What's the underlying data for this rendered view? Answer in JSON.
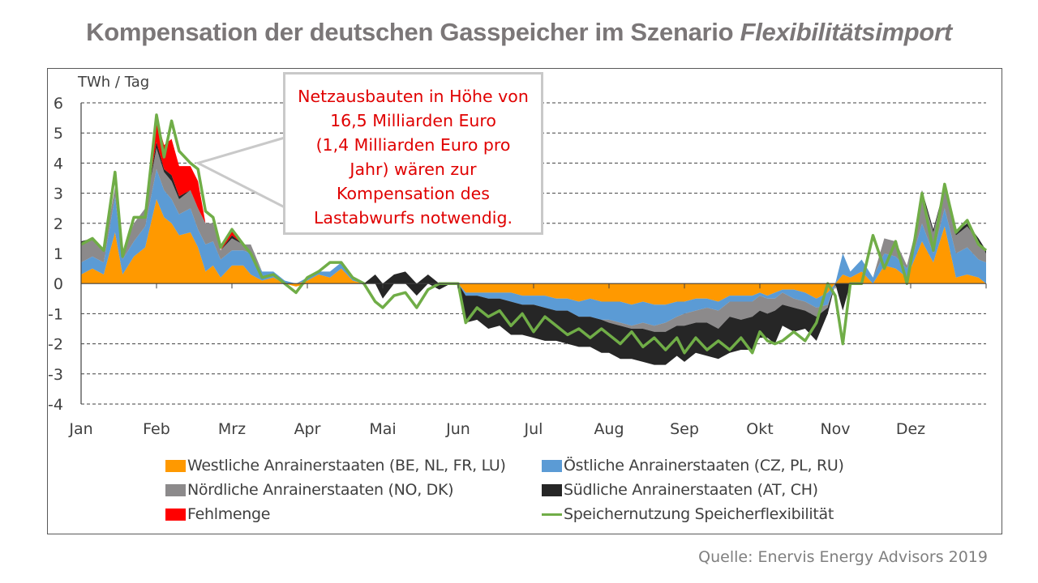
{
  "title": {
    "main": "Kompensation der deutschen Gasspeicher im Szenario ",
    "italic": "Flexibilitätsimport"
  },
  "source": "Quelle: Enervis Energy Advisors 2019",
  "callout": {
    "lines": [
      "Netzausbauten in Höhe von",
      "16,5 Milliarden Euro",
      "(1,4 Milliarden Euro pro",
      "Jahr) wären zur",
      "Kompensation des",
      "Lastabwurfs notwendig."
    ],
    "text_color": "#e00000",
    "border_color": "#c9c9c9",
    "points_to": {
      "month_position": 1.55,
      "value": 4.0
    }
  },
  "legend": [
    {
      "key": "west",
      "label": "Westliche Anrainerstaaten (BE, NL, FR, LU)",
      "color": "#ff9900",
      "kind": "area"
    },
    {
      "key": "east",
      "label": "Östliche Anrainerstaaten (CZ, PL, RU)",
      "color": "#5b9bd5",
      "kind": "area"
    },
    {
      "key": "north",
      "label": "Nördliche Anrainerstaaten (NO, DK)",
      "color": "#8c8a8b",
      "kind": "area"
    },
    {
      "key": "south",
      "label": "Südliche Anrainerstaaten (AT, CH)",
      "color": "#262626",
      "kind": "area"
    },
    {
      "key": "deficit",
      "label": "Fehlmenge",
      "color": "#ff0000",
      "kind": "area"
    },
    {
      "key": "usage",
      "label": "Speichernutzung Speicherflexibilität",
      "color": "#70ad47",
      "kind": "line"
    }
  ],
  "chart_data": {
    "type": "area",
    "stacked": true,
    "title": "Kompensation der deutschen Gasspeicher im Szenario Flexibilitätsimport",
    "ylabel": "TWh / Tag",
    "xlabel": "",
    "ylim": [
      -4,
      6
    ],
    "yticks": [
      "6",
      "5",
      "4",
      "3",
      "2",
      "1",
      "0",
      "-1",
      "-2",
      "-3",
      "-4"
    ],
    "ytick_values": [
      6,
      5,
      4,
      3,
      2,
      1,
      0,
      -1,
      -2,
      -3,
      -4
    ],
    "grid": "horizontal dashed",
    "categories": [
      "Jan",
      "Feb",
      "Mrz",
      "Apr",
      "Mai",
      "Jun",
      "Jul",
      "Aug",
      "Sep",
      "Okt",
      "Nov",
      "Dez"
    ],
    "x_unit": "month position (0 = start Jan, 12 = end Dez)",
    "x": [
      0.0,
      0.15,
      0.3,
      0.45,
      0.55,
      0.7,
      0.85,
      1.0,
      1.1,
      1.2,
      1.3,
      1.45,
      1.55,
      1.65,
      1.75,
      1.85,
      2.0,
      2.15,
      2.25,
      2.4,
      2.55,
      2.7,
      2.85,
      3.0,
      3.15,
      3.3,
      3.45,
      3.6,
      3.75,
      3.9,
      4.0,
      4.15,
      4.3,
      4.45,
      4.6,
      4.75,
      4.9,
      5.0,
      5.1,
      5.25,
      5.4,
      5.55,
      5.7,
      5.85,
      6.0,
      6.15,
      6.3,
      6.45,
      6.6,
      6.75,
      6.9,
      7.0,
      7.15,
      7.3,
      7.45,
      7.6,
      7.75,
      7.9,
      8.0,
      8.15,
      8.3,
      8.45,
      8.6,
      8.75,
      8.9,
      9.0,
      9.1,
      9.2,
      9.3,
      9.45,
      9.6,
      9.75,
      9.9,
      10.0,
      10.1,
      10.2,
      10.35,
      10.5,
      10.65,
      10.8,
      10.95,
      11.05,
      11.15,
      11.3,
      11.45,
      11.6,
      11.75,
      11.9,
      12.0
    ],
    "series": [
      {
        "name": "Westliche Anrainerstaaten (BE, NL, FR, LU)",
        "key": "west",
        "values": [
          0.3,
          0.5,
          0.3,
          1.7,
          0.3,
          0.9,
          1.2,
          2.8,
          2.2,
          2.0,
          1.6,
          1.7,
          1.2,
          0.4,
          0.6,
          0.2,
          0.6,
          0.6,
          0.3,
          0.1,
          0.2,
          0.0,
          -0.1,
          0.1,
          0.3,
          0.2,
          0.5,
          0.1,
          0.0,
          0.0,
          0.0,
          0.0,
          0.0,
          0.0,
          0.0,
          0.0,
          0.0,
          0.0,
          -0.3,
          -0.3,
          -0.3,
          -0.3,
          -0.3,
          -0.4,
          -0.4,
          -0.4,
          -0.5,
          -0.5,
          -0.6,
          -0.5,
          -0.6,
          -0.6,
          -0.6,
          -0.7,
          -0.6,
          -0.7,
          -0.7,
          -0.6,
          -0.6,
          -0.5,
          -0.5,
          -0.6,
          -0.4,
          -0.4,
          -0.4,
          -0.3,
          -0.4,
          -0.3,
          -0.2,
          -0.2,
          -0.3,
          -0.5,
          -0.3,
          0.0,
          0.3,
          0.2,
          0.4,
          0.0,
          0.6,
          0.5,
          0.2,
          0.8,
          1.4,
          0.7,
          1.9,
          0.2,
          0.3,
          0.2,
          0.0
        ]
      },
      {
        "name": "Östliche Anrainerstaaten (CZ, PL, RU)",
        "key": "east",
        "values": [
          0.4,
          0.4,
          0.4,
          1.2,
          0.5,
          0.5,
          0.7,
          1.0,
          0.9,
          0.8,
          0.7,
          0.8,
          0.6,
          0.9,
          0.8,
          0.6,
          0.5,
          0.5,
          0.7,
          0.3,
          0.2,
          0.1,
          0.0,
          0.1,
          0.1,
          0.2,
          0.2,
          0.1,
          0.0,
          0.0,
          0.0,
          0.0,
          0.0,
          0.0,
          0.0,
          0.0,
          0.0,
          0.0,
          -0.1,
          -0.1,
          -0.2,
          -0.2,
          -0.3,
          -0.3,
          -0.3,
          -0.4,
          -0.4,
          -0.4,
          -0.5,
          -0.6,
          -0.6,
          -0.6,
          -0.7,
          -0.7,
          -0.7,
          -0.7,
          -0.6,
          -0.5,
          -0.4,
          -0.4,
          -0.3,
          -0.3,
          -0.2,
          -0.2,
          -0.2,
          -0.1,
          -0.1,
          -0.2,
          -0.1,
          -0.3,
          -0.3,
          -0.3,
          -0.4,
          0.0,
          0.7,
          0.2,
          0.4,
          0.2,
          0.4,
          0.4,
          0.3,
          0.3,
          0.6,
          0.3,
          0.6,
          0.8,
          0.9,
          0.6,
          0.7
        ]
      },
      {
        "name": "Nördliche Anrainerstaaten (NO, DK)",
        "key": "north",
        "values": [
          0.6,
          0.6,
          0.4,
          0.3,
          0.2,
          0.6,
          0.6,
          0.7,
          0.6,
          0.6,
          0.5,
          0.6,
          0.7,
          0.7,
          0.6,
          0.3,
          0.4,
          0.2,
          0.3,
          0.0,
          0.0,
          0.0,
          0.0,
          0.0,
          0.0,
          0.0,
          0.0,
          0.0,
          0.0,
          0.0,
          0.0,
          0.0,
          0.0,
          0.0,
          0.0,
          0.0,
          0.0,
          0.0,
          0.0,
          0.0,
          0.0,
          0.0,
          0.0,
          0.0,
          0.0,
          0.0,
          0.0,
          0.0,
          0.0,
          0.0,
          0.0,
          -0.1,
          -0.1,
          -0.1,
          -0.2,
          -0.2,
          -0.3,
          -0.3,
          -0.4,
          -0.4,
          -0.5,
          -0.6,
          -0.5,
          -0.6,
          -0.5,
          -0.5,
          -0.5,
          -0.4,
          -0.4,
          -0.3,
          -0.3,
          -0.3,
          -0.1,
          0.0,
          0.0,
          0.0,
          0.0,
          0.0,
          0.5,
          0.5,
          0.1,
          0.5,
          1.0,
          0.7,
          0.7,
          0.6,
          0.7,
          0.6,
          0.3
        ]
      },
      {
        "name": "Südliche Anrainerstaaten (AT, CH)",
        "key": "south",
        "values": [
          0.1,
          0.0,
          0.0,
          0.0,
          0.0,
          0.0,
          0.0,
          0.2,
          0.1,
          0.2,
          0.1,
          0.0,
          0.0,
          0.0,
          0.0,
          0.0,
          0.1,
          0.0,
          0.0,
          0.0,
          0.0,
          0.0,
          0.0,
          0.0,
          0.0,
          0.0,
          0.0,
          0.0,
          0.0,
          0.3,
          -0.5,
          0.3,
          0.4,
          -0.4,
          0.3,
          -0.2,
          0.0,
          0.0,
          -0.9,
          -0.8,
          -1.0,
          -0.9,
          -1.1,
          -1.0,
          -1.1,
          -1.1,
          -1.0,
          -1.1,
          -1.0,
          -1.0,
          -1.1,
          -1.0,
          -1.1,
          -1.0,
          -1.1,
          -1.1,
          -1.1,
          -1.0,
          -1.2,
          -1.0,
          -1.1,
          -1.0,
          -1.2,
          -1.0,
          -1.1,
          -0.9,
          -0.8,
          -1.1,
          -0.7,
          -0.8,
          -0.6,
          -0.8,
          -0.2,
          0.0,
          -0.9,
          0.0,
          0.0,
          0.0,
          0.0,
          0.0,
          0.0,
          0.0,
          0.1,
          0.1,
          0.0,
          0.1,
          0.1,
          0.1,
          0.1
        ]
      },
      {
        "name": "Fehlmenge",
        "key": "deficit",
        "values": [
          0.0,
          0.0,
          0.0,
          0.0,
          0.0,
          0.0,
          0.0,
          0.8,
          0.8,
          1.2,
          1.0,
          0.8,
          0.9,
          0.0,
          0.0,
          0.0,
          0.2,
          0.0,
          0.0,
          0.0,
          0.0,
          0.0,
          0.0,
          0.0,
          0.0,
          0.0,
          0.0,
          0.0,
          0.0,
          0.0,
          0.0,
          0.0,
          0.0,
          0.0,
          0.0,
          0.0,
          0.0,
          0.0,
          0.0,
          0.0,
          0.0,
          0.0,
          0.0,
          0.0,
          0.0,
          0.0,
          0.0,
          0.0,
          0.0,
          0.0,
          0.0,
          0.0,
          0.0,
          0.0,
          0.0,
          0.0,
          0.0,
          0.0,
          0.0,
          0.0,
          0.0,
          0.0,
          0.0,
          0.0,
          0.0,
          0.0,
          0.0,
          0.0,
          0.0,
          0.0,
          0.0,
          0.0,
          0.0,
          0.0,
          0.0,
          0.0,
          0.0,
          0.0,
          0.0,
          0.0,
          0.0,
          0.0,
          0.0,
          0.0,
          0.0,
          0.0,
          0.0,
          0.0,
          0.0
        ]
      },
      {
        "name": "Speichernutzung Speicherflexibilität",
        "key": "usage",
        "type": "line",
        "values": [
          1.3,
          1.5,
          1.1,
          3.7,
          0.9,
          2.2,
          2.2,
          5.6,
          4.2,
          5.4,
          4.4,
          4.0,
          3.8,
          2.4,
          2.2,
          1.2,
          1.8,
          1.3,
          1.0,
          0.2,
          0.3,
          0.0,
          -0.3,
          0.2,
          0.4,
          0.7,
          0.7,
          0.2,
          0.0,
          -0.6,
          -0.8,
          -0.4,
          -0.3,
          -0.8,
          -0.2,
          0.0,
          0.0,
          0.0,
          -1.3,
          -0.8,
          -1.1,
          -0.9,
          -1.4,
          -1.0,
          -1.6,
          -1.1,
          -1.4,
          -1.7,
          -1.5,
          -1.8,
          -1.5,
          -1.7,
          -2.0,
          -1.6,
          -2.1,
          -1.8,
          -2.2,
          -1.8,
          -2.3,
          -1.8,
          -2.2,
          -1.9,
          -2.2,
          -1.8,
          -2.3,
          -1.6,
          -1.9,
          -2.0,
          -1.9,
          -1.6,
          -1.9,
          -1.3,
          0.0,
          -0.4,
          -2.0,
          0.0,
          0.0,
          1.6,
          0.5,
          1.4,
          0.0,
          1.4,
          3.0,
          1.1,
          3.3,
          1.7,
          2.1,
          1.3,
          1.1
        ]
      }
    ]
  }
}
